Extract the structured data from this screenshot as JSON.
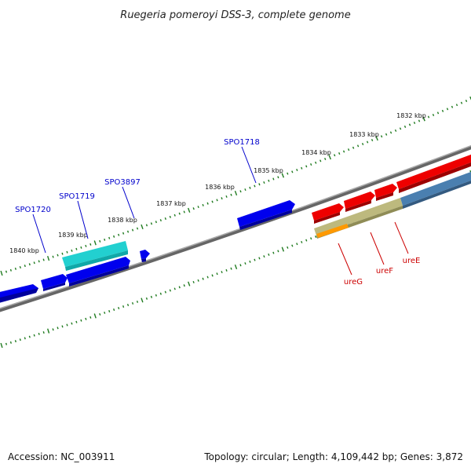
{
  "title": "Ruegeria pomeroyi DSS-3, complete genome",
  "footer": {
    "accession": "Accession: NC_003911",
    "summary": "Topology: circular; Length: 4,109,442 bp; Genes: 3,872"
  },
  "ruler": {
    "unit_suffix": " kbp",
    "ticks": [
      "1832 kbp",
      "1833 kbp",
      "1834 kbp",
      "1835 kbp",
      "1836 kbp",
      "1837 kbp",
      "1838 kbp",
      "1839 kbp",
      "1840 kbp"
    ]
  },
  "gene_labels": [
    {
      "name": "SPO1720",
      "color": "#0000cc"
    },
    {
      "name": "SPO1719",
      "color": "#0000cc"
    },
    {
      "name": "SPO3897",
      "color": "#0000cc"
    },
    {
      "name": "SPO1718",
      "color": "#0000cc"
    },
    {
      "name": "ureG",
      "color": "#cc0000"
    },
    {
      "name": "ureF",
      "color": "#cc0000"
    },
    {
      "name": "ureE",
      "color": "#cc0000"
    }
  ],
  "colors": {
    "backbone": "#7f7f7f",
    "tick": "#1e7a1e",
    "forward_gene": "#0000ee",
    "cyan_gene": "#22cccc",
    "red_gene": "#ee0000",
    "steelblue_gene": "#4a7fb0",
    "khaki_gene": "#b8b47a",
    "orange_gene": "#ff9900"
  }
}
